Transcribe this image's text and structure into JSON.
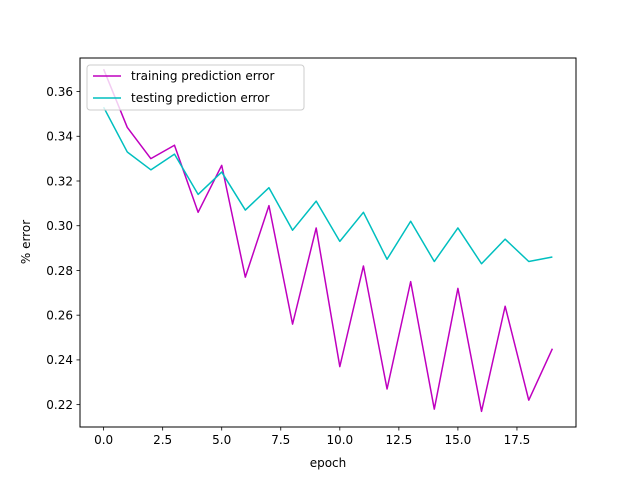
{
  "chart_data": {
    "type": "line",
    "xlabel": "epoch",
    "ylabel": "% error",
    "xlim": [
      -1.0,
      20.0
    ],
    "ylim": [
      0.21,
      0.375
    ],
    "x_ticks": [
      0.0,
      2.5,
      5.0,
      7.5,
      10.0,
      12.5,
      15.0,
      17.5
    ],
    "x_tick_labels": [
      "0.0",
      "2.5",
      "5.0",
      "7.5",
      "10.0",
      "12.5",
      "15.0",
      "17.5"
    ],
    "y_ticks": [
      0.22,
      0.24,
      0.26,
      0.28,
      0.3,
      0.32,
      0.34,
      0.36
    ],
    "y_tick_labels": [
      "0.22",
      "0.24",
      "0.26",
      "0.28",
      "0.30",
      "0.32",
      "0.34",
      "0.36"
    ],
    "grid": false,
    "legend_position": "top-left",
    "x": [
      0,
      1,
      2,
      3,
      4,
      5,
      6,
      7,
      8,
      9,
      10,
      11,
      12,
      13,
      14,
      15,
      16,
      17,
      18,
      19
    ],
    "series": [
      {
        "name": "training prediction error",
        "color": "#bf00bf",
        "values": [
          0.37,
          0.344,
          0.33,
          0.336,
          0.306,
          0.327,
          0.277,
          0.309,
          0.256,
          0.299,
          0.237,
          0.282,
          0.227,
          0.275,
          0.218,
          0.272,
          0.217,
          0.264,
          0.222,
          0.245
        ]
      },
      {
        "name": "testing prediction error",
        "color": "#00bfbf",
        "values": [
          0.353,
          0.333,
          0.325,
          0.332,
          0.314,
          0.324,
          0.307,
          0.317,
          0.298,
          0.311,
          0.293,
          0.306,
          0.285,
          0.302,
          0.284,
          0.299,
          0.283,
          0.294,
          0.284,
          0.286
        ]
      }
    ]
  }
}
